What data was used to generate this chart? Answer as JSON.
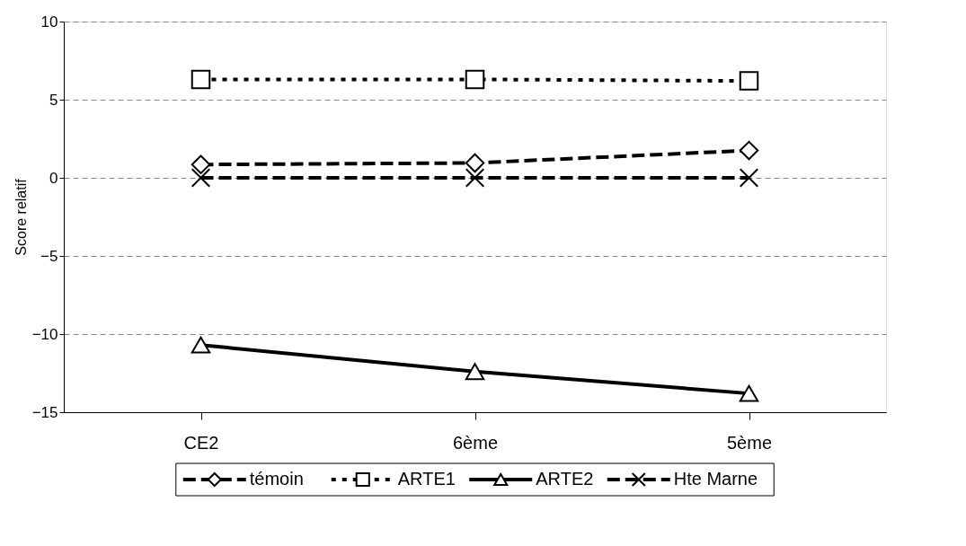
{
  "chart_data": {
    "type": "line",
    "ylabel": "Score relatif",
    "categories": [
      "CE2",
      "6ème",
      "5ème"
    ],
    "series": [
      {
        "name": "témoin",
        "color": "#000000",
        "values": [
          0.85,
          0.95,
          1.75
        ],
        "marker": "diamond",
        "line_style": "dashed"
      },
      {
        "name": "ARTE1",
        "color": "#000000",
        "values": [
          6.3,
          6.3,
          6.2
        ],
        "marker": "square",
        "line_style": "dotted"
      },
      {
        "name": "ARTE2",
        "color": "#000000",
        "values": [
          -10.7,
          -12.4,
          -13.8
        ],
        "marker": "triangle",
        "line_style": "solid"
      },
      {
        "name": "Hte Marne",
        "color": "#000000",
        "values": [
          0,
          0,
          0
        ],
        "marker": "cross",
        "line_style": "dashed"
      }
    ],
    "ylim": [
      -15,
      10
    ],
    "yticks": [
      -15,
      -10,
      -5,
      0,
      5,
      10
    ],
    "grid": "y",
    "legend": "bottom"
  }
}
